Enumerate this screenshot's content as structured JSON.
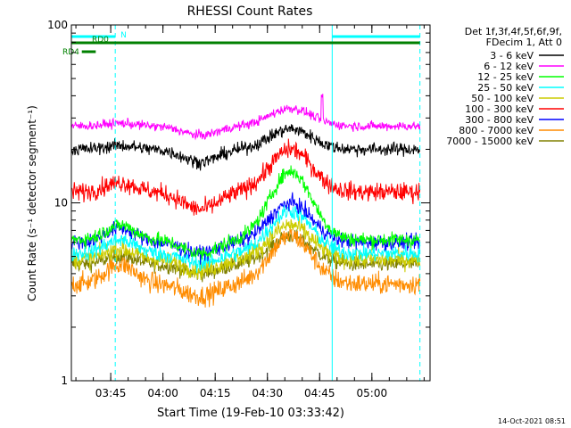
{
  "chart_data": {
    "type": "line",
    "title": "RHESSI Count Rates",
    "xlabel": "Start Time (19-Feb-10 03:33:42)",
    "ylabel": "Count Rate (s⁻¹ detector segment⁻¹)",
    "y_scale": "log",
    "ylim": [
      1,
      100
    ],
    "y_ticks": [
      {
        "value": 1,
        "label": "1"
      },
      {
        "value": 10,
        "label": "10"
      },
      {
        "value": 100,
        "label": "100"
      }
    ],
    "x_unit": "minutes after 03:33:42",
    "xlim": [
      0,
      103
    ],
    "x_ticks": [
      {
        "value": 11.3,
        "label": "03:45"
      },
      {
        "value": 26.3,
        "label": "04:00"
      },
      {
        "value": 41.3,
        "label": "04:15"
      },
      {
        "value": 56.3,
        "label": "04:30"
      },
      {
        "value": 71.3,
        "label": "04:45"
      },
      {
        "value": 86.3,
        "label": "05:00"
      }
    ],
    "legend_header": [
      "Det 1f,3f,4f,5f,6f,9f,",
      "FDecim 1, Att 0"
    ],
    "legend_position": "right",
    "series": [
      {
        "name": "3 - 6 keV",
        "color": "#000000",
        "base": 20,
        "peak": 26,
        "dip": 17,
        "bump": 21,
        "noise": 0.035
      },
      {
        "name": "6 - 12 keV",
        "color": "#ff00ff",
        "base": 27,
        "peak": 34,
        "dip": 24,
        "bump": 28,
        "noise": 0.025
      },
      {
        "name": "12 - 25 keV",
        "color": "#00ff00",
        "base": 6.2,
        "peak": 15,
        "dip": 5.2,
        "bump": 7.5,
        "noise": 0.04
      },
      {
        "name": "25 - 50 keV",
        "color": "#00ffff",
        "base": 5.2,
        "peak": 9,
        "dip": 4.6,
        "bump": 6.2,
        "noise": 0.045
      },
      {
        "name": "50 - 100 keV",
        "color": "#cccc00",
        "base": 4.8,
        "peak": 7.5,
        "dip": 4.2,
        "bump": 5.5,
        "noise": 0.05
      },
      {
        "name": "100 - 300 keV",
        "color": "#ff0000",
        "base": 11.5,
        "peak": 20,
        "dip": 9.2,
        "bump": 13,
        "noise": 0.05
      },
      {
        "name": "300 - 800 keV",
        "color": "#0000ff",
        "base": 6,
        "peak": 10,
        "dip": 5.2,
        "bump": 7.2,
        "noise": 0.04
      },
      {
        "name": "800 - 7000 keV",
        "color": "#ff8c00",
        "base": 3.5,
        "peak": 6.5,
        "dip": 3,
        "bump": 4.5,
        "noise": 0.055
      },
      {
        "name": "7000 - 15000 keV",
        "color": "#808000",
        "base": 4.5,
        "peak": 6.5,
        "dip": 4,
        "bump": 5,
        "noise": 0.04
      }
    ],
    "vertical_markers": [
      {
        "x": 12.6,
        "style": "dashed",
        "color": "#00ffff"
      },
      {
        "x": 74.9,
        "style": "solid",
        "color": "#00ffff"
      },
      {
        "x": 100.1,
        "style": "dashed",
        "color": "#00ffff"
      }
    ],
    "flag_bars": [
      {
        "label": "N",
        "color": "#00ffff",
        "segments": [
          [
            0,
            12.6
          ],
          [
            74.9,
            100.1
          ]
        ],
        "row": 1
      },
      {
        "label": "RD0",
        "color": "#008000",
        "segments": [
          [
            0,
            100.1
          ]
        ],
        "row": 2
      },
      {
        "label": "RD4",
        "color": "#008000",
        "segments": [
          [
            3,
            7
          ]
        ],
        "row": 3
      }
    ],
    "footer_timestamp": "14-Oct-2021 08:51"
  }
}
